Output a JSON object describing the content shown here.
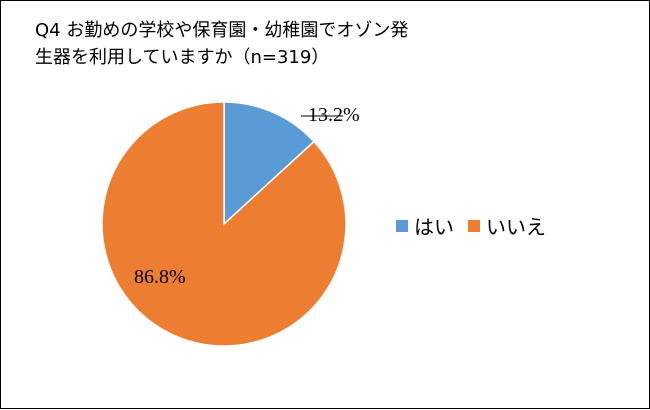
{
  "chart_data": {
    "type": "pie",
    "title": "Q4 お勤めの学校や保育園・幼稚園でオゾン発\n生器を利用していますか（n=319）",
    "categories": [
      "はい",
      "いいえ"
    ],
    "values": [
      13.2,
      86.8
    ],
    "labels": [
      "13.2%",
      "86.8%"
    ],
    "colors": [
      "#5B9BD5",
      "#ED7D31"
    ],
    "legend_position": "right"
  }
}
